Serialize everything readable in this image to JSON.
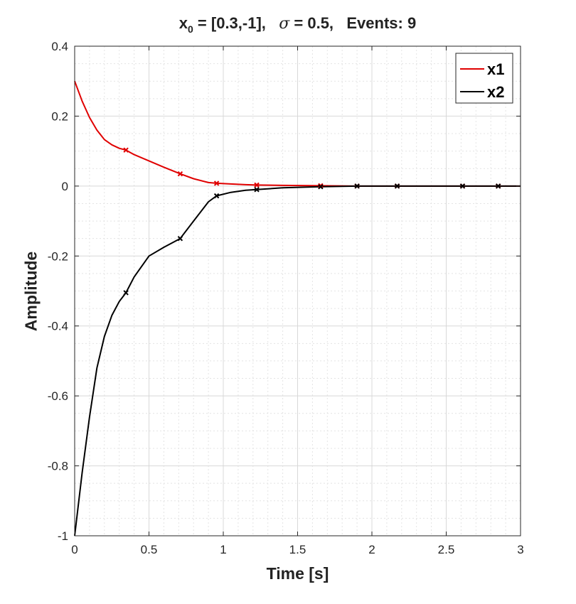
{
  "chart_data": {
    "type": "line",
    "title": {
      "var": "x",
      "sub": "0",
      "x0_part": " = [0.3,-1],   ",
      "sigma_symbol": "σ",
      "sigma_part": " = 0.5,   Events: 9"
    },
    "xlabel": "Time [s]",
    "ylabel": "Amplitude",
    "xlim": [
      0,
      3
    ],
    "ylim": [
      -1,
      0.4
    ],
    "xticks": [
      "0",
      "0.5",
      "1",
      "1.5",
      "2",
      "2.5",
      "3"
    ],
    "xtick_values": [
      0,
      0.5,
      1,
      1.5,
      2,
      2.5,
      3
    ],
    "yticks": [
      "-1",
      "-0.8",
      "-0.6",
      "-0.4",
      "-0.2",
      "0",
      "0.2",
      "0.4"
    ],
    "ytick_values": [
      -1,
      -0.8,
      -0.6,
      -0.4,
      -0.2,
      0,
      0.2,
      0.4
    ],
    "grid": true,
    "minor_grid": true,
    "legend_position": "top-right",
    "series": [
      {
        "name": "x1",
        "color": "#e00000",
        "x": [
          0,
          0.05,
          0.1,
          0.15,
          0.2,
          0.25,
          0.3,
          0.345,
          0.4,
          0.5,
          0.6,
          0.71,
          0.8,
          0.9,
          0.955,
          1.05,
          1.15,
          1.225,
          1.4,
          1.655,
          1.9,
          2.17,
          2.61,
          2.85,
          3.0
        ],
        "y": [
          0.3,
          0.243,
          0.196,
          0.16,
          0.133,
          0.118,
          0.108,
          0.103,
          0.09,
          0.072,
          0.054,
          0.035,
          0.021,
          0.01,
          0.008,
          0.006,
          0.004,
          0.003,
          0.002,
          0.001,
          0,
          0,
          0,
          0,
          0
        ]
      },
      {
        "name": "x2",
        "color": "#000000",
        "x": [
          0,
          0.05,
          0.1,
          0.15,
          0.2,
          0.25,
          0.3,
          0.345,
          0.4,
          0.5,
          0.6,
          0.71,
          0.8,
          0.9,
          0.955,
          1.05,
          1.15,
          1.225,
          1.4,
          1.655,
          1.9,
          2.17,
          2.61,
          2.85,
          3.0
        ],
        "y": [
          -1,
          -0.82,
          -0.66,
          -0.52,
          -0.43,
          -0.37,
          -0.33,
          -0.305,
          -0.26,
          -0.2,
          -0.175,
          -0.15,
          -0.1,
          -0.045,
          -0.028,
          -0.018,
          -0.012,
          -0.01,
          -0.005,
          -0.002,
          0,
          0,
          0,
          0,
          0
        ]
      }
    ],
    "events": [
      {
        "series": "x1",
        "x": [
          0.345,
          0.71,
          0.955,
          1.225,
          1.655,
          1.9,
          2.17,
          2.61,
          2.85
        ]
      },
      {
        "series": "x2",
        "x": [
          0.345,
          0.71,
          0.955,
          1.225,
          1.655,
          1.9,
          2.17,
          2.61,
          2.85
        ]
      }
    ]
  }
}
